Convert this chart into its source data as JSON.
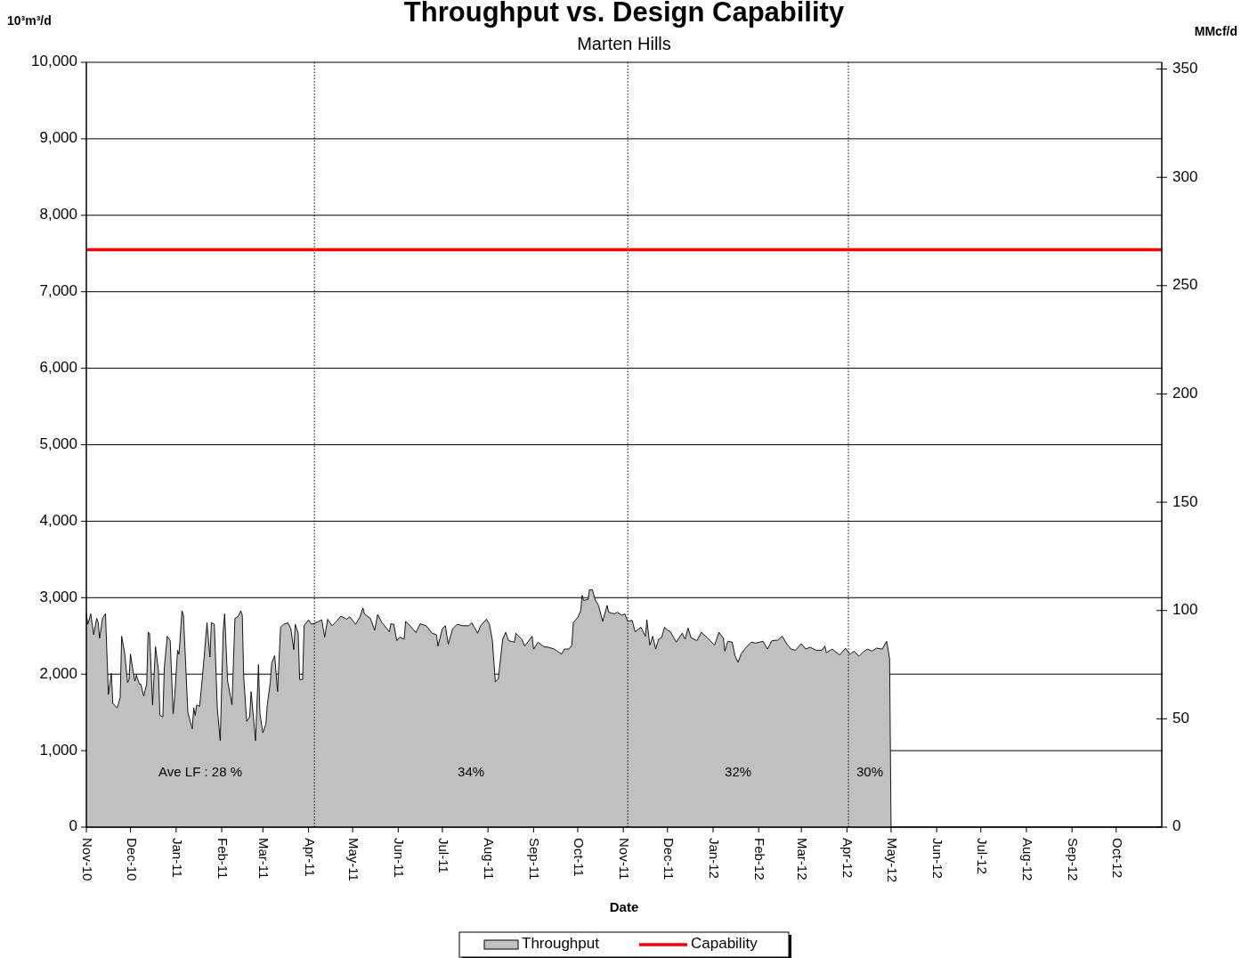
{
  "chart_data": {
    "type": "area",
    "title": "Throughput vs. Design Capability",
    "subtitle": "Marten Hills",
    "xlabel": "Date",
    "ylabel": "10³m³/d",
    "y2label": "MMcf/d",
    "xlim": [
      "2010-11-01",
      "2012-11-01"
    ],
    "xticks": [
      {
        "value": "2010-11-01",
        "label": "Nov-10"
      },
      {
        "value": "2010-12-01",
        "label": "Dec-10"
      },
      {
        "value": "2011-01-01",
        "label": "Jan-11"
      },
      {
        "value": "2011-02-01",
        "label": "Feb-11"
      },
      {
        "value": "2011-03-01",
        "label": "Mar-11"
      },
      {
        "value": "2011-04-01",
        "label": "Apr-11"
      },
      {
        "value": "2011-05-01",
        "label": "May-11"
      },
      {
        "value": "2011-06-01",
        "label": "Jun-11"
      },
      {
        "value": "2011-07-01",
        "label": "Jul-11"
      },
      {
        "value": "2011-08-01",
        "label": "Aug-11"
      },
      {
        "value": "2011-09-01",
        "label": "Sep-11"
      },
      {
        "value": "2011-10-01",
        "label": "Oct-11"
      },
      {
        "value": "2011-11-01",
        "label": "Nov-11"
      },
      {
        "value": "2011-12-01",
        "label": "Dec-11"
      },
      {
        "value": "2012-01-01",
        "label": "Jan-12"
      },
      {
        "value": "2012-02-01",
        "label": "Feb-12"
      },
      {
        "value": "2012-03-01",
        "label": "Mar-12"
      },
      {
        "value": "2012-04-01",
        "label": "Apr-12"
      },
      {
        "value": "2012-05-01",
        "label": "May-12"
      },
      {
        "value": "2012-06-01",
        "label": "Jun-12"
      },
      {
        "value": "2012-07-01",
        "label": "Jul-12"
      },
      {
        "value": "2012-08-01",
        "label": "Aug-12"
      },
      {
        "value": "2012-09-01",
        "label": "Sep-12"
      },
      {
        "value": "2012-10-01",
        "label": "Oct-12"
      }
    ],
    "ylim": [
      0,
      10000
    ],
    "yticks": [
      {
        "value": 0,
        "label": "0"
      },
      {
        "value": 1000,
        "label": "1,000"
      },
      {
        "value": 2000,
        "label": "2,000"
      },
      {
        "value": 3000,
        "label": "3,000"
      },
      {
        "value": 4000,
        "label": "4,000"
      },
      {
        "value": 5000,
        "label": "5,000"
      },
      {
        "value": 6000,
        "label": "6,000"
      },
      {
        "value": 7000,
        "label": "7,000"
      },
      {
        "value": 8000,
        "label": "8,000"
      },
      {
        "value": 9000,
        "label": "9,000"
      },
      {
        "value": 10000,
        "label": "10,000"
      }
    ],
    "y2lim": [
      0,
      353.1
    ],
    "y2ticks": [
      0,
      50,
      100,
      150,
      200,
      250,
      300,
      350
    ],
    "grid": "y",
    "legend": "bottom",
    "ref_lines": [
      {
        "axis": "x",
        "value": "2011-04-05",
        "line_style": "dotted",
        "color": "#000000"
      },
      {
        "axis": "x",
        "value": "2011-11-04",
        "line_style": "dotted",
        "color": "#000000"
      },
      {
        "axis": "x",
        "value": "2012-04-02",
        "line_style": "dotted",
        "color": "#000000"
      }
    ],
    "annotations": [
      "Ave LF : 28 %",
      "34%",
      "32%",
      "30%"
    ],
    "series": [
      {
        "name": "Throughput",
        "color": "#c0c0c0",
        "x": [
          "2010-11-01",
          "2010-11-02",
          "2010-11-04",
          "2010-11-06",
          "2010-11-08",
          "2010-11-09",
          "2010-11-10",
          "2010-11-12",
          "2010-11-14",
          "2010-11-16",
          "2010-11-18",
          "2010-11-19",
          "2010-11-22",
          "2010-11-24",
          "2010-11-25",
          "2010-11-27",
          "2010-11-29",
          "2010-11-30",
          "2010-12-01",
          "2010-12-03",
          "2010-12-04",
          "2010-12-05",
          "2010-12-07",
          "2010-12-08",
          "2010-12-10",
          "2010-12-12",
          "2010-12-13",
          "2010-12-14",
          "2010-12-16",
          "2010-12-18",
          "2010-12-20",
          "2010-12-21",
          "2010-12-23",
          "2010-12-24",
          "2010-12-26",
          "2010-12-28",
          "2010-12-30",
          "2010-12-31",
          "2011-01-02",
          "2011-01-03",
          "2011-01-05",
          "2011-01-06",
          "2011-01-09",
          "2011-01-12",
          "2011-01-13",
          "2011-01-14",
          "2011-01-15",
          "2011-01-17",
          "2011-01-19",
          "2011-01-20",
          "2011-01-22",
          "2011-01-24",
          "2011-01-25",
          "2011-01-27",
          "2011-01-29",
          "2011-01-31",
          "2011-02-02",
          "2011-02-03",
          "2011-02-05",
          "2011-02-08",
          "2011-02-10",
          "2011-02-12",
          "2011-02-14",
          "2011-02-15",
          "2011-02-16",
          "2011-02-18",
          "2011-02-20",
          "2011-02-21",
          "2011-02-24",
          "2011-02-26",
          "2011-02-27",
          "2011-03-01",
          "2011-03-03",
          "2011-03-04",
          "2011-03-06",
          "2011-03-07",
          "2011-03-09",
          "2011-03-11",
          "2011-03-13",
          "2011-03-15",
          "2011-03-18",
          "2011-03-20",
          "2011-03-22",
          "2011-03-23",
          "2011-03-25",
          "2011-03-26",
          "2011-03-28",
          "2011-03-29",
          "2011-04-01",
          "2011-04-03",
          "2011-04-06",
          "2011-04-10",
          "2011-04-12",
          "2011-04-14",
          "2011-04-17",
          "2011-04-20",
          "2011-04-23",
          "2011-04-27",
          "2011-04-29",
          "2011-05-03",
          "2011-05-06",
          "2011-05-08",
          "2011-05-09",
          "2011-05-13",
          "2011-05-16",
          "2011-05-18",
          "2011-05-21",
          "2011-05-26",
          "2011-05-27",
          "2011-05-29",
          "2011-05-31",
          "2011-06-02",
          "2011-06-05",
          "2011-06-06",
          "2011-06-09",
          "2011-06-13",
          "2011-06-16",
          "2011-06-20",
          "2011-06-24",
          "2011-06-27",
          "2011-06-28",
          "2011-07-01",
          "2011-07-03",
          "2011-07-05",
          "2011-07-08",
          "2011-07-11",
          "2011-07-15",
          "2011-07-19",
          "2011-07-21",
          "2011-07-25",
          "2011-07-27",
          "2011-07-31",
          "2011-08-02",
          "2011-08-04",
          "2011-08-06",
          "2011-08-08",
          "2011-08-11",
          "2011-08-13",
          "2011-08-15",
          "2011-08-19",
          "2011-08-20",
          "2011-08-24",
          "2011-08-26",
          "2011-08-31",
          "2011-09-01",
          "2011-09-04",
          "2011-09-08",
          "2011-09-11",
          "2011-09-15",
          "2011-09-20",
          "2011-09-22",
          "2011-09-25",
          "2011-09-27",
          "2011-09-28",
          "2011-10-01",
          "2011-10-03",
          "2011-10-04",
          "2011-10-05",
          "2011-10-08",
          "2011-10-09",
          "2011-10-11",
          "2011-10-13",
          "2011-10-15",
          "2011-10-18",
          "2011-10-21",
          "2011-10-22",
          "2011-10-26",
          "2011-10-28",
          "2011-10-31",
          "2011-11-02",
          "2011-11-04",
          "2011-11-07",
          "2011-11-09",
          "2011-11-13",
          "2011-11-16",
          "2011-11-17",
          "2011-11-19",
          "2011-11-21",
          "2011-11-23",
          "2011-11-25",
          "2011-11-27",
          "2011-11-29",
          "2011-12-01",
          "2011-12-03",
          "2011-12-07",
          "2011-12-11",
          "2011-12-13",
          "2011-12-15",
          "2011-12-17",
          "2011-12-21",
          "2011-12-24",
          "2011-12-28",
          "2012-01-02",
          "2012-01-05",
          "2012-01-08",
          "2012-01-09",
          "2012-01-11",
          "2012-01-14",
          "2012-01-16",
          "2012-01-18",
          "2012-01-20",
          "2012-01-23",
          "2012-01-27",
          "2012-01-30",
          "2012-02-04",
          "2012-02-07",
          "2012-02-10",
          "2012-02-14",
          "2012-02-17",
          "2012-02-20",
          "2012-02-23",
          "2012-02-26",
          "2012-03-01",
          "2012-03-04",
          "2012-03-07",
          "2012-03-11",
          "2012-03-15",
          "2012-03-17",
          "2012-03-18",
          "2012-03-22",
          "2012-03-27",
          "2012-03-31",
          "2012-04-03",
          "2012-04-06",
          "2012-04-09",
          "2012-04-12",
          "2012-04-15",
          "2012-04-18",
          "2012-04-21",
          "2012-04-25",
          "2012-04-28",
          "2012-04-30",
          "2012-05-01"
        ],
        "values": [
          2789,
          2652,
          2789,
          2516,
          2730,
          2680,
          2469,
          2730,
          2789,
          1734,
          2008,
          1617,
          1559,
          1695,
          2496,
          2281,
          1891,
          1930,
          2262,
          2008,
          1910,
          1988,
          1871,
          1871,
          1715,
          1871,
          2547,
          2535,
          1598,
          2359,
          2047,
          1461,
          1441,
          2086,
          2496,
          2438,
          1480,
          1695,
          2313,
          2262,
          2828,
          2770,
          1500,
          1285,
          1559,
          1461,
          1598,
          1578,
          1988,
          2211,
          2672,
          2223,
          2672,
          2652,
          1559,
          1129,
          2555,
          2789,
          1910,
          1598,
          2730,
          2750,
          2828,
          2770,
          1949,
          1383,
          1441,
          1773,
          1129,
          2125,
          1480,
          1234,
          1344,
          1598,
          1891,
          2145,
          2242,
          1773,
          2613,
          2652,
          2672,
          2594,
          2320,
          2652,
          2535,
          1930,
          1930,
          2633,
          2711,
          2652,
          2672,
          2711,
          2484,
          2719,
          2633,
          2691,
          2758,
          2719,
          2750,
          2652,
          2750,
          2867,
          2789,
          2730,
          2574,
          2781,
          2672,
          2555,
          2660,
          2652,
          2438,
          2484,
          2457,
          2691,
          2633,
          2543,
          2660,
          2633,
          2535,
          2516,
          2367,
          2594,
          2633,
          2391,
          2594,
          2652,
          2633,
          2633,
          2672,
          2535,
          2633,
          2719,
          2652,
          2438,
          1898,
          1938,
          2457,
          2547,
          2438,
          2418,
          2535,
          2457,
          2367,
          2496,
          2328,
          2418,
          2359,
          2352,
          2328,
          2262,
          2328,
          2328,
          2379,
          2672,
          2742,
          2828,
          3031,
          2965,
          2977,
          3102,
          3102,
          2965,
          2906,
          2691,
          2900,
          2809,
          2789,
          2809,
          2770,
          2789,
          2691,
          2703,
          2555,
          2613,
          2496,
          2711,
          2379,
          2496,
          2328,
          2457,
          2477,
          2613,
          2574,
          2555,
          2418,
          2535,
          2457,
          2602,
          2477,
          2438,
          2547,
          2477,
          2379,
          2547,
          2469,
          2301,
          2430,
          2418,
          2234,
          2156,
          2262,
          2340,
          2418,
          2406,
          2430,
          2328,
          2438,
          2445,
          2496,
          2398,
          2328,
          2313,
          2398,
          2328,
          2352,
          2313,
          2313,
          2367,
          2281,
          2328,
          2250,
          2340,
          2262,
          2301,
          2234,
          2289,
          2328,
          2301,
          2340,
          2328,
          2430,
          2203,
          0
        ]
      },
      {
        "name": "Capability",
        "type": "line",
        "color": "#ff0000",
        "x": [
          "2010-11-01",
          "2012-11-01"
        ],
        "values": [
          7550,
          7550
        ]
      }
    ]
  }
}
